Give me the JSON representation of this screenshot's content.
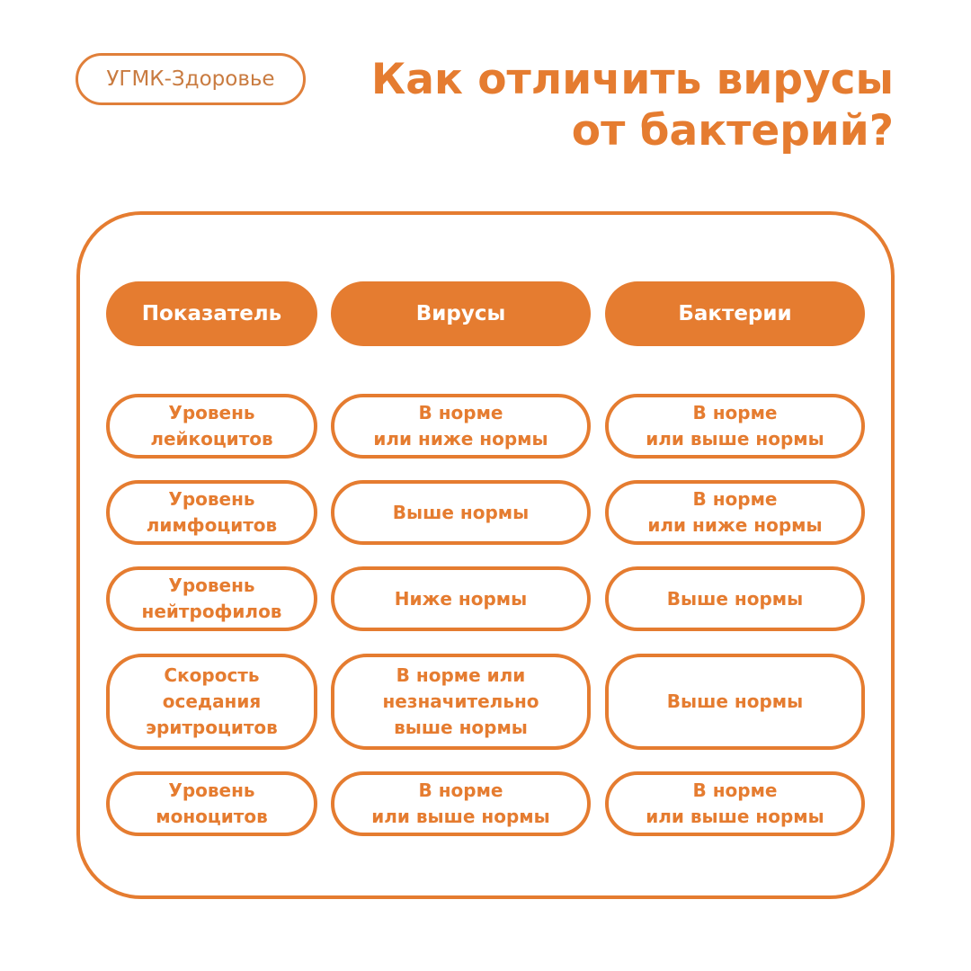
{
  "brand": "УГМК-Здоровье",
  "title": {
    "line1": "Как отличить вирусы",
    "line2": "от бактерий?"
  },
  "colors": {
    "accent": "#E57C30"
  },
  "table": {
    "headers": [
      "Показатель",
      "Вирусы",
      "Бактерии"
    ],
    "rows": [
      [
        "Уровень\nлейкоцитов",
        "В норме\nили ниже нормы",
        "В норме\nили выше нормы"
      ],
      [
        "Уровень\nлимфоцитов",
        "Выше нормы",
        "В норме\nили ниже нормы"
      ],
      [
        "Уровень\nнейтрофилов",
        "Ниже нормы",
        "Выше нормы"
      ],
      [
        "Скорость\nоседания\nэритроцитов",
        "В норме или\nнезначительно\nвыше нормы",
        "Выше нормы"
      ],
      [
        "Уровень\nмоноцитов",
        "В норме\nили выше нормы",
        "В норме\nили выше нормы"
      ]
    ]
  }
}
